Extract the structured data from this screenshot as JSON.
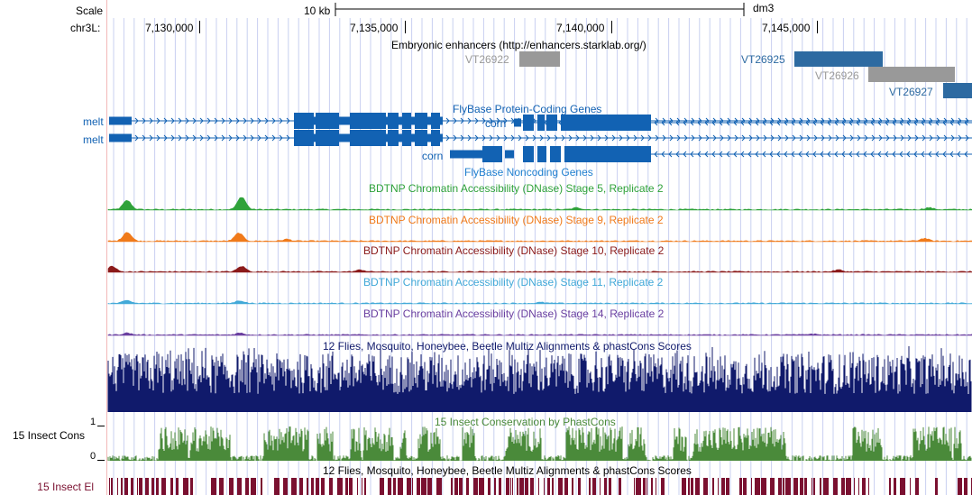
{
  "header": {
    "scale_label": "Scale",
    "chrom_label": "chr3L:",
    "scale_bar_text": "10 kb",
    "assembly": "dm3",
    "positions": [
      "7,130,000",
      "7,135,000",
      "7,140,000",
      "7,145,000"
    ]
  },
  "tracks": {
    "enhancers": {
      "title": "Embryonic enhancers (http://enhancers.starklab.org/)",
      "items": [
        {
          "name": "VT26922",
          "color": "#999999"
        },
        {
          "name": "VT26925",
          "color": "#2d6aa1"
        },
        {
          "name": "VT26926",
          "color": "#999999"
        },
        {
          "name": "VT26927",
          "color": "#2d6aa1"
        }
      ]
    },
    "coding": {
      "title": "FlyBase Protein-Coding Genes",
      "color": "#1262b3",
      "genes": [
        "melt",
        "melt",
        "corn"
      ]
    },
    "noncoding": {
      "title": "FlyBase Noncoding Genes",
      "color": "#1f7fcf",
      "genes": [
        "corn"
      ]
    },
    "dnase": [
      {
        "title": "BDTNP Chromatin Accessibility (DNase) Stage 5, Replicate 2",
        "color": "#2fa23a"
      },
      {
        "title": "BDTNP Chromatin Accessibility (DNase) Stage 9, Replicate 2",
        "color": "#f07a1a"
      },
      {
        "title": "BDTNP Chromatin Accessibility (DNase) Stage 10, Replicate 2",
        "color": "#8b1a1a"
      },
      {
        "title": "BDTNP Chromatin Accessibility (DNase) Stage 11, Replicate 2",
        "color": "#42a9d8"
      },
      {
        "title": "BDTNP Chromatin Accessibility (DNase) Stage 14, Replicate 2",
        "color": "#6a3fa0"
      }
    ],
    "multiz": {
      "title": "12 Flies, Mosquito, Honeybee, Beetle Multiz Alignments & phastCons Scores",
      "color": "#101a6b"
    },
    "insect_cons": {
      "side_label": "15 Insect Cons",
      "title": "15 Insect Conservation by PhastCons",
      "axis_max": "1",
      "axis_min": "0",
      "color": "#4a8a3a"
    },
    "insect_el": {
      "side_label": "15 Insect El",
      "title": "12 Flies, Mosquito, Honeybee, Beetle Multiz Alignments & phastCons Scores",
      "color": "#7a1030"
    }
  },
  "colors": {
    "grid_line": "#c8d0f0",
    "edge_line": "#f2b8b8"
  }
}
